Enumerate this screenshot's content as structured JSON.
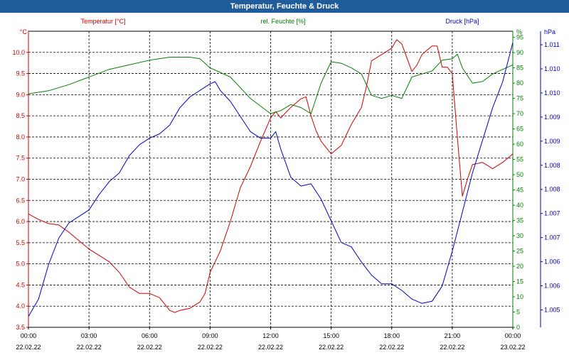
{
  "title": "Temperatur, Feuchte & Druck",
  "colors": {
    "temperature": "#cc0000",
    "humidity": "#008000",
    "pressure": "#0000c0",
    "header": "#1f5c99"
  },
  "chart_data": {
    "type": "line",
    "title": "Temperatur, Feuchte & Druck",
    "x_label_times": [
      "00:00",
      "03:00",
      "06:00",
      "09:00",
      "12:00",
      "15:00",
      "18:00",
      "21:00",
      "00:00"
    ],
    "x_label_dates": [
      "22.02.22",
      "22.02.22",
      "22.02.22",
      "22.02.22",
      "22.02.22",
      "22.02.22",
      "22.02.22",
      "22.02.22",
      "23.02.22"
    ],
    "x_range_hours": [
      0,
      24
    ],
    "grid": true,
    "axes": {
      "temperature": {
        "label": "Temperatur [°C]",
        "unit": "°C",
        "ylim": [
          3.5,
          10.5
        ],
        "ticks": [
          "3.5",
          "4.0",
          "4.5",
          "5.0",
          "5.5",
          "6.0",
          "6.5",
          "7.0",
          "7.5",
          "8.0",
          "8.5",
          "9.0",
          "9.5",
          "10.0"
        ]
      },
      "humidity": {
        "label": "rel. Feuchte [%]",
        "unit": "%",
        "ylim": [
          0,
          97
        ],
        "ticks": [
          "0",
          "5",
          "10",
          "15",
          "20",
          "25",
          "30",
          "35",
          "40",
          "45",
          "50",
          "55",
          "60",
          "65",
          "70",
          "75",
          "80",
          "85",
          "90",
          "95"
        ]
      },
      "pressure": {
        "label": "Druck [hPa]",
        "unit": "hPa",
        "ylim": [
          1004.55,
          1011.36
        ],
        "ticks": [
          "1.005",
          "1.006",
          "1.006",
          "1.007",
          "1.007",
          "1.008",
          "1.008",
          "1.009",
          "1.009",
          "1.010",
          "1.010",
          "1.011"
        ]
      }
    },
    "series": [
      {
        "name": "Temperatur [°C]",
        "axis": "temperature",
        "points": [
          [
            0,
            6.18
          ],
          [
            0.5,
            6.05
          ],
          [
            1,
            5.95
          ],
          [
            1.5,
            5.92
          ],
          [
            2,
            5.75
          ],
          [
            2.5,
            5.55
          ],
          [
            3,
            5.35
          ],
          [
            3.5,
            5.2
          ],
          [
            4,
            5.05
          ],
          [
            4.5,
            4.8
          ],
          [
            5,
            4.45
          ],
          [
            5.5,
            4.3
          ],
          [
            6,
            4.3
          ],
          [
            6.5,
            4.2
          ],
          [
            7,
            3.9
          ],
          [
            7.25,
            3.85
          ],
          [
            7.5,
            3.9
          ],
          [
            8,
            3.95
          ],
          [
            8.5,
            4.1
          ],
          [
            8.75,
            4.3
          ],
          [
            9,
            4.8
          ],
          [
            9.5,
            5.3
          ],
          [
            10,
            6.0
          ],
          [
            10.5,
            6.8
          ],
          [
            11,
            7.3
          ],
          [
            11.5,
            7.9
          ],
          [
            12,
            8.45
          ],
          [
            12.25,
            8.6
          ],
          [
            12.5,
            8.45
          ],
          [
            13,
            8.7
          ],
          [
            13.5,
            8.9
          ],
          [
            13.75,
            8.95
          ],
          [
            14,
            8.5
          ],
          [
            14.25,
            8.15
          ],
          [
            14.5,
            7.9
          ],
          [
            15,
            7.6
          ],
          [
            15.5,
            7.8
          ],
          [
            16,
            8.3
          ],
          [
            16.5,
            8.7
          ],
          [
            16.75,
            9.2
          ],
          [
            17,
            9.8
          ],
          [
            17.5,
            9.95
          ],
          [
            18,
            10.1
          ],
          [
            18.25,
            10.3
          ],
          [
            18.5,
            10.2
          ],
          [
            19,
            9.55
          ],
          [
            19.25,
            9.7
          ],
          [
            19.5,
            9.95
          ],
          [
            20,
            10.15
          ],
          [
            20.25,
            10.15
          ],
          [
            20.5,
            9.65
          ],
          [
            20.75,
            9.65
          ],
          [
            21,
            9.5
          ],
          [
            21.25,
            8.0
          ],
          [
            21.5,
            6.6
          ],
          [
            21.75,
            7.0
          ],
          [
            22,
            7.35
          ],
          [
            22.5,
            7.4
          ],
          [
            23,
            7.25
          ],
          [
            23.5,
            7.4
          ],
          [
            24,
            7.6
          ]
        ]
      },
      {
        "name": "rel. Feuchte [%]",
        "axis": "humidity",
        "points": [
          [
            0,
            76.5
          ],
          [
            1,
            77.5
          ],
          [
            2,
            79.5
          ],
          [
            3,
            82
          ],
          [
            4,
            84.5
          ],
          [
            5,
            86
          ],
          [
            6,
            87.5
          ],
          [
            7,
            88.5
          ],
          [
            8,
            88.5
          ],
          [
            8.5,
            88
          ],
          [
            9,
            85
          ],
          [
            10,
            82
          ],
          [
            11,
            75
          ],
          [
            12,
            70
          ],
          [
            12.5,
            71
          ],
          [
            13,
            73
          ],
          [
            13.5,
            72
          ],
          [
            14,
            70
          ],
          [
            14.5,
            80
          ],
          [
            15,
            87
          ],
          [
            15.5,
            86.5
          ],
          [
            16,
            85
          ],
          [
            16.5,
            83
          ],
          [
            17,
            76
          ],
          [
            17.5,
            75
          ],
          [
            18,
            76
          ],
          [
            18.5,
            75
          ],
          [
            19,
            82
          ],
          [
            19.5,
            83
          ],
          [
            20,
            84
          ],
          [
            20.5,
            87.5
          ],
          [
            21,
            88
          ],
          [
            21.25,
            89.5
          ],
          [
            21.5,
            85
          ],
          [
            22,
            80
          ],
          [
            22.5,
            80.5
          ],
          [
            23,
            83
          ],
          [
            24,
            86
          ]
        ]
      },
      {
        "name": "Druck [hPa]",
        "axis": "pressure",
        "points": [
          [
            0,
            1004.8
          ],
          [
            0.5,
            1005.2
          ],
          [
            1,
            1006.0
          ],
          [
            1.5,
            1006.6
          ],
          [
            2,
            1006.95
          ],
          [
            2.5,
            1007.1
          ],
          [
            3,
            1007.25
          ],
          [
            3.5,
            1007.6
          ],
          [
            4,
            1007.9
          ],
          [
            4.5,
            1008.1
          ],
          [
            5,
            1008.5
          ],
          [
            5.5,
            1008.75
          ],
          [
            6,
            1008.9
          ],
          [
            6.5,
            1009.0
          ],
          [
            7,
            1009.2
          ],
          [
            7.5,
            1009.6
          ],
          [
            8,
            1009.85
          ],
          [
            8.5,
            1010.0
          ],
          [
            9,
            1010.15
          ],
          [
            9.25,
            1010.2
          ],
          [
            9.5,
            1010.0
          ],
          [
            10,
            1009.75
          ],
          [
            10.5,
            1009.4
          ],
          [
            11,
            1009.05
          ],
          [
            11.5,
            1008.9
          ],
          [
            12,
            1008.9
          ],
          [
            12.25,
            1009.05
          ],
          [
            12.5,
            1008.65
          ],
          [
            13,
            1008.0
          ],
          [
            13.5,
            1007.8
          ],
          [
            14,
            1007.85
          ],
          [
            14.5,
            1007.5
          ],
          [
            15,
            1007.0
          ],
          [
            15.5,
            1006.5
          ],
          [
            16,
            1006.4
          ],
          [
            16.5,
            1006.05
          ],
          [
            17,
            1005.75
          ],
          [
            17.5,
            1005.55
          ],
          [
            18,
            1005.55
          ],
          [
            18.5,
            1005.4
          ],
          [
            19,
            1005.2
          ],
          [
            19.5,
            1005.1
          ],
          [
            20,
            1005.15
          ],
          [
            20.5,
            1005.5
          ],
          [
            21,
            1006.3
          ],
          [
            21.5,
            1007.2
          ],
          [
            22,
            1008.1
          ],
          [
            22.5,
            1008.85
          ],
          [
            23,
            1009.6
          ],
          [
            23.5,
            1010.2
          ],
          [
            24,
            1011.1
          ]
        ]
      }
    ]
  }
}
